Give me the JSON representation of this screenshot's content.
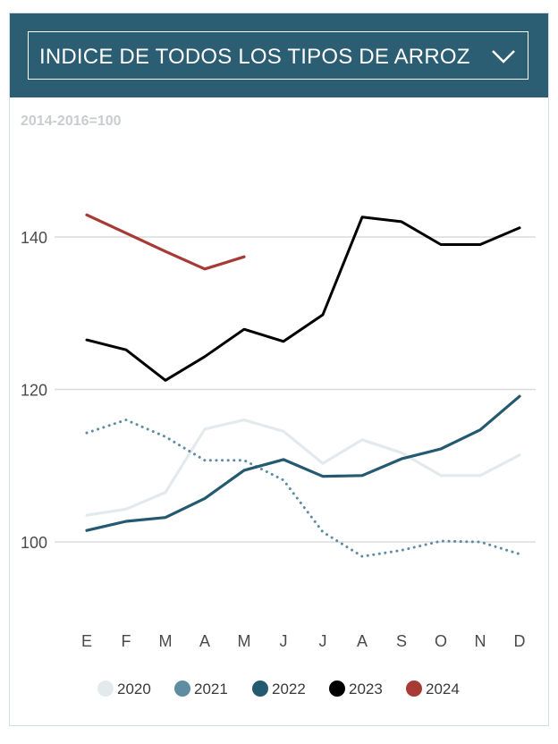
{
  "selector": {
    "value": "INDICE DE TODOS LOS TIPOS DE ARROZ",
    "icon": "chevron-down-icon"
  },
  "chart_data": {
    "type": "line",
    "subtitle": "2014-2016=100",
    "title": "",
    "xlabel": "",
    "ylabel": "",
    "categories": [
      "E",
      "F",
      "M",
      "A",
      "M",
      "J",
      "J",
      "A",
      "S",
      "O",
      "N",
      "D"
    ],
    "ylim": [
      90,
      150
    ],
    "yticks": [
      100,
      120,
      140
    ],
    "grid": true,
    "legend_position": "bottom",
    "series": [
      {
        "name": "2020",
        "color": "#e3eaee",
        "dash": "solid",
        "values": [
          103.5,
          104.3,
          106.5,
          114.8,
          116.0,
          114.5,
          110.3,
          113.4,
          111.7,
          108.7,
          108.7,
          111.4
        ]
      },
      {
        "name": "2021",
        "color": "#5e8ca1",
        "dash": "dotted",
        "values": [
          114.3,
          116.0,
          113.8,
          110.7,
          110.7,
          108.1,
          101.3,
          98.1,
          98.9,
          100.1,
          100.0,
          98.4
        ]
      },
      {
        "name": "2022",
        "color": "#245a70",
        "dash": "solid",
        "values": [
          101.5,
          102.7,
          103.2,
          105.7,
          109.4,
          110.8,
          108.6,
          108.7,
          110.9,
          112.2,
          114.7,
          119.1
        ]
      },
      {
        "name": "2023",
        "color": "#000000",
        "dash": "solid",
        "values": [
          126.5,
          125.2,
          121.2,
          124.3,
          127.9,
          126.3,
          129.8,
          142.6,
          142.0,
          139.0,
          139.0,
          141.2
        ]
      },
      {
        "name": "2024",
        "color": "#a83a36",
        "dash": "solid",
        "values": [
          142.9,
          140.5,
          138.1,
          135.8,
          137.4,
          null,
          null,
          null,
          null,
          null,
          null,
          null
        ]
      }
    ]
  }
}
